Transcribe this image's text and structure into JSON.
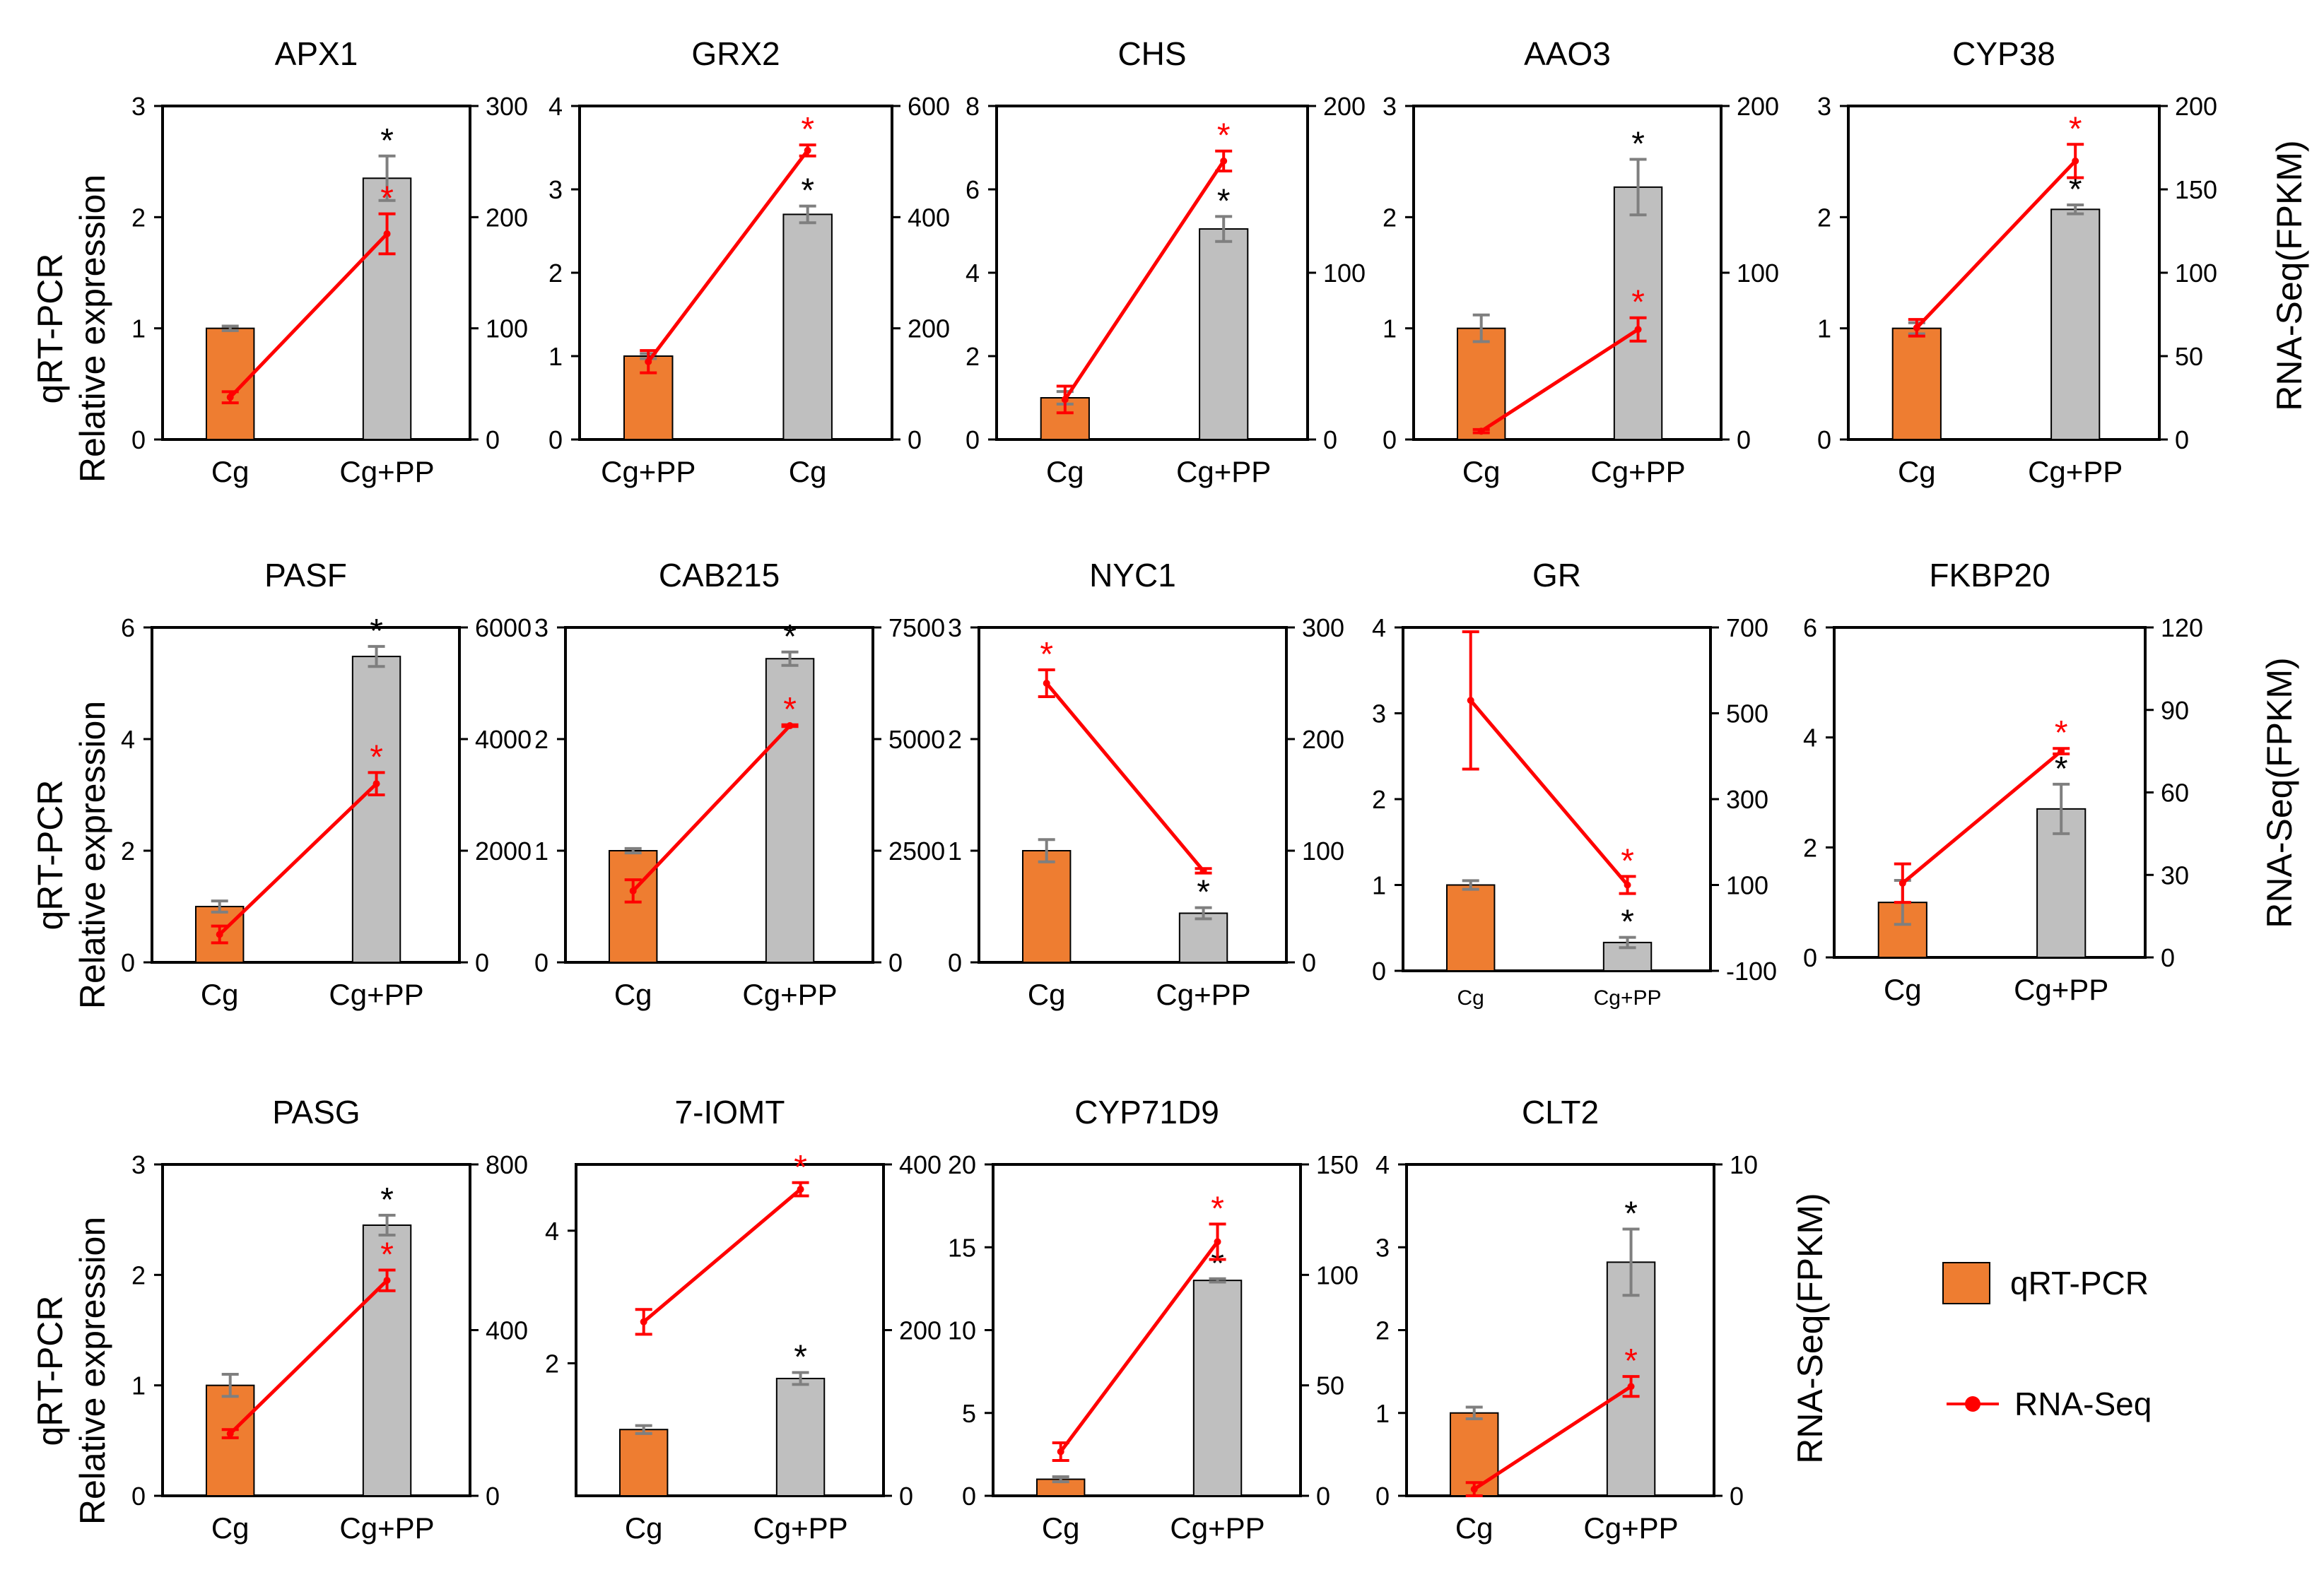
{
  "chart_data": [
    {
      "type": "bar",
      "title": "APX1",
      "categories": [
        "Cg",
        "Cg+PP"
      ],
      "qpcr": [
        1.0,
        2.35
      ],
      "qpcr_err": [
        0.02,
        0.2
      ],
      "qpcr_star": [
        false,
        true
      ],
      "qpcr_ylim": [
        0,
        3
      ],
      "qpcr_ticks": [
        "0",
        "1",
        "2",
        "3"
      ],
      "rna": [
        38,
        185
      ],
      "rna_err": [
        5,
        18
      ],
      "rna_star": [
        false,
        true
      ],
      "rna_ylim": [
        0,
        300
      ],
      "rna_ticks": [
        "0",
        "100",
        "200",
        "300"
      ]
    },
    {
      "type": "bar",
      "title": "GRX2",
      "categories": [
        "Cg+PP",
        "Cg"
      ],
      "qpcr": [
        1.0,
        2.7
      ],
      "qpcr_err": [
        0.03,
        0.1
      ],
      "qpcr_star": [
        false,
        true
      ],
      "qpcr_ylim": [
        0,
        4
      ],
      "qpcr_ticks": [
        "0",
        "1",
        "2",
        "3",
        "4"
      ],
      "rna": [
        140,
        520
      ],
      "rna_err": [
        20,
        10
      ],
      "rna_star": [
        false,
        true
      ],
      "rna_ylim": [
        0,
        600
      ],
      "rna_ticks": [
        "0",
        "200",
        "400",
        "600"
      ]
    },
    {
      "type": "bar",
      "title": "CHS",
      "categories": [
        "Cg",
        "Cg+PP"
      ],
      "qpcr": [
        1.0,
        5.05
      ],
      "qpcr_err": [
        0.15,
        0.3
      ],
      "qpcr_star": [
        false,
        true
      ],
      "qpcr_ylim": [
        0,
        8
      ],
      "qpcr_ticks": [
        "0",
        "2",
        "4",
        "6",
        "8"
      ],
      "rna": [
        24,
        167
      ],
      "rna_err": [
        8,
        6
      ],
      "rna_star": [
        false,
        true
      ],
      "rna_ylim": [
        0,
        200
      ],
      "rna_ticks": [
        "0",
        "100",
        "200"
      ]
    },
    {
      "type": "bar",
      "title": "AAO3",
      "categories": [
        "Cg",
        "Cg+PP"
      ],
      "qpcr": [
        1.0,
        2.27
      ],
      "qpcr_err": [
        0.12,
        0.25
      ],
      "qpcr_star": [
        false,
        true
      ],
      "qpcr_ylim": [
        0,
        3
      ],
      "qpcr_ticks": [
        "0",
        "1",
        "2",
        "3"
      ],
      "rna": [
        5,
        66
      ],
      "rna_err": [
        1,
        7
      ],
      "rna_star": [
        false,
        true
      ],
      "rna_ylim": [
        0,
        200
      ],
      "rna_ticks": [
        "0",
        "100",
        "200"
      ]
    },
    {
      "type": "bar",
      "title": "CYP38",
      "categories": [
        "Cg",
        "Cg+PP"
      ],
      "qpcr": [
        1.0,
        2.07
      ],
      "qpcr_err": [
        0.05,
        0.04
      ],
      "qpcr_star": [
        false,
        true
      ],
      "qpcr_ylim": [
        0,
        3
      ],
      "qpcr_ticks": [
        "0",
        "1",
        "2",
        "3"
      ],
      "rna": [
        67,
        167
      ],
      "rna_err": [
        5,
        10
      ],
      "rna_star": [
        false,
        true
      ],
      "rna_ylim": [
        0,
        200
      ],
      "rna_ticks": [
        "0",
        "50",
        "100",
        "150",
        "200"
      ]
    },
    {
      "type": "bar",
      "title": "PASF",
      "categories": [
        "Cg",
        "Cg+PP"
      ],
      "qpcr": [
        1.0,
        5.48
      ],
      "qpcr_err": [
        0.1,
        0.18
      ],
      "qpcr_star": [
        false,
        true
      ],
      "qpcr_ylim": [
        0,
        6
      ],
      "qpcr_ticks": [
        "0",
        "2",
        "4",
        "6"
      ],
      "rna": [
        500,
        3200
      ],
      "rna_err": [
        150,
        200
      ],
      "rna_star": [
        false,
        true
      ],
      "rna_ylim": [
        0,
        6000
      ],
      "rna_ticks": [
        "0",
        "2000",
        "4000",
        "6000"
      ]
    },
    {
      "type": "bar",
      "title": "CAB215",
      "categories": [
        "Cg",
        "Cg+PP"
      ],
      "qpcr": [
        1.0,
        2.72
      ],
      "qpcr_err": [
        0.02,
        0.06
      ],
      "qpcr_star": [
        false,
        true
      ],
      "qpcr_ylim": [
        0,
        3
      ],
      "qpcr_ticks": [
        "0",
        "1",
        "2",
        "3"
      ],
      "rna": [
        1600,
        5300
      ],
      "rna_err": [
        250,
        20
      ],
      "rna_star": [
        false,
        true
      ],
      "rna_ylim": [
        0,
        7500
      ],
      "rna_ticks": [
        "0",
        "2500",
        "5000",
        "7500"
      ]
    },
    {
      "type": "bar",
      "title": "NYC1",
      "categories": [
        "Cg",
        "Cg+PP"
      ],
      "qpcr": [
        1.0,
        0.44
      ],
      "qpcr_err": [
        0.1,
        0.05
      ],
      "qpcr_star": [
        false,
        true
      ],
      "qpcr_ylim": [
        0,
        3
      ],
      "qpcr_ticks": [
        "0",
        "1",
        "2",
        "3"
      ],
      "rna": [
        250,
        82
      ],
      "rna_err": [
        12,
        2
      ],
      "rna_star": [
        true,
        false
      ],
      "rna_ylim": [
        0,
        300
      ],
      "rna_ticks": [
        "0",
        "100",
        "200",
        "300"
      ]
    },
    {
      "type": "bar",
      "title": "GR",
      "categories": [
        "Cg",
        "Cg+PP"
      ],
      "qpcr": [
        1.0,
        0.33
      ],
      "qpcr_err": [
        0.05,
        0.06
      ],
      "qpcr_star": [
        false,
        true
      ],
      "qpcr_ylim": [
        0,
        4
      ],
      "qpcr_ticks": [
        "0",
        "1",
        "2",
        "3",
        "4"
      ],
      "rna": [
        530,
        100
      ],
      "rna_err": [
        160,
        20
      ],
      "rna_star": [
        false,
        true
      ],
      "rna_ylim": [
        -100,
        700
      ],
      "rna_ticks": [
        "-100",
        "100",
        "300",
        "500",
        "700"
      ]
    },
    {
      "type": "bar",
      "title": "FKBP20",
      "categories": [
        "Cg",
        "Cg+PP"
      ],
      "qpcr": [
        1.0,
        2.7
      ],
      "qpcr_err": [
        0.4,
        0.45
      ],
      "qpcr_star": [
        false,
        true
      ],
      "qpcr_ylim": [
        0,
        6
      ],
      "qpcr_ticks": [
        "0",
        "2",
        "4",
        "6"
      ],
      "rna": [
        27,
        75
      ],
      "rna_err": [
        7,
        1
      ],
      "rna_star": [
        false,
        true
      ],
      "rna_ylim": [
        0,
        120
      ],
      "rna_ticks": [
        "0",
        "30",
        "60",
        "90",
        "120"
      ]
    },
    {
      "type": "bar",
      "title": "PASG",
      "categories": [
        "Cg",
        "Cg+PP"
      ],
      "qpcr": [
        1.0,
        2.45
      ],
      "qpcr_err": [
        0.1,
        0.09
      ],
      "qpcr_star": [
        false,
        true
      ],
      "qpcr_ylim": [
        0,
        3
      ],
      "qpcr_ticks": [
        "0",
        "1",
        "2",
        "3"
      ],
      "rna": [
        150,
        520
      ],
      "rna_err": [
        10,
        25
      ],
      "rna_star": [
        false,
        true
      ],
      "rna_ylim": [
        0,
        800
      ],
      "rna_ticks": [
        "0",
        "400",
        "800"
      ]
    },
    {
      "type": "bar",
      "title": "7-IOMT",
      "categories": [
        "Cg",
        "Cg+PP"
      ],
      "qpcr": [
        1.0,
        1.77
      ],
      "qpcr_err": [
        0.06,
        0.09
      ],
      "qpcr_star": [
        false,
        true
      ],
      "qpcr_ylim": [
        0,
        5
      ],
      "qpcr_ticks": [
        "2",
        "4"
      ],
      "rna": [
        210,
        370
      ],
      "rna_err": [
        15,
        8
      ],
      "rna_star": [
        false,
        true
      ],
      "rna_ylim": [
        0,
        400
      ],
      "rna_ticks": [
        "0",
        "200",
        "400"
      ]
    },
    {
      "type": "bar",
      "title": "CYP71D9",
      "categories": [
        "Cg",
        "Cg+PP"
      ],
      "qpcr": [
        1.0,
        13.0
      ],
      "qpcr_err": [
        0.15,
        0.1
      ],
      "qpcr_star": [
        false,
        true
      ],
      "qpcr_ylim": [
        0,
        20
      ],
      "qpcr_ticks": [
        "0",
        "5",
        "10",
        "15",
        "20"
      ],
      "rna": [
        20,
        115
      ],
      "rna_err": [
        4,
        8
      ],
      "rna_star": [
        false,
        true
      ],
      "rna_ylim": [
        0,
        150
      ],
      "rna_ticks": [
        "0",
        "50",
        "100",
        "150"
      ]
    },
    {
      "type": "bar",
      "title": "CLT2",
      "categories": [
        "Cg",
        "Cg+PP"
      ],
      "qpcr": [
        1.0,
        2.82
      ],
      "qpcr_err": [
        0.07,
        0.4
      ],
      "qpcr_star": [
        false,
        true
      ],
      "qpcr_ylim": [
        0,
        4
      ],
      "qpcr_ticks": [
        "0",
        "1",
        "2",
        "3",
        "4"
      ],
      "rna": [
        0.2,
        3.3
      ],
      "rna_err": [
        0.2,
        0.3
      ],
      "rna_star": [
        false,
        true
      ],
      "rna_ylim": [
        0,
        10
      ],
      "rna_ticks": [
        "0",
        "10"
      ]
    }
  ],
  "axis_labels": {
    "left_line1": "qRT-PCR",
    "left_line2": "Relative expression",
    "right": "RNA-Seq(FPKM)"
  },
  "legend": {
    "bar_label": "qRT-PCR",
    "line_label": "RNA-Seq"
  },
  "colors": {
    "bar_first": "#ee7d31",
    "bar_second": "#bfbfbf",
    "line": "#ff0000",
    "error_bar": "#7f7f7f",
    "star_black": "#000000",
    "star_red": "#ff0000"
  }
}
